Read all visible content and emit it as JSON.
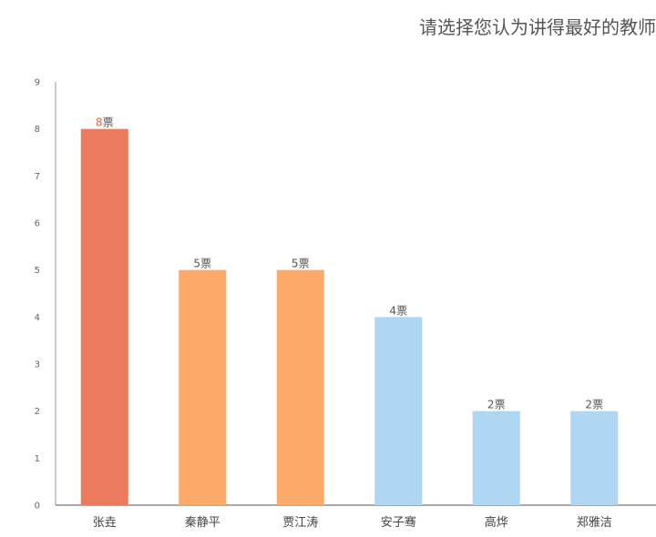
{
  "chart_data": {
    "type": "bar",
    "title": "请选择您认为讲得最好的教师",
    "xlabel": "",
    "ylabel": "",
    "ylim": [
      0,
      9
    ],
    "yticks": [
      0,
      1,
      2,
      3,
      4,
      5,
      6,
      7,
      8,
      9
    ],
    "grid": false,
    "legend": "none",
    "categories": [
      "张垚",
      "秦静平",
      "贾江涛",
      "安子骞",
      "高烨",
      "郑雅洁"
    ],
    "values": [
      8,
      5,
      5,
      4,
      2,
      2
    ],
    "value_suffix": "票",
    "bar_colors": [
      "#ec7a5f",
      "#fcaa6a",
      "#fcaa6a",
      "#afd6f3",
      "#afd6f3",
      "#afd6f3"
    ],
    "label_number_colors": [
      "#e2673f",
      "#555555",
      "#555555",
      "#555555",
      "#555555",
      "#555555"
    ]
  }
}
